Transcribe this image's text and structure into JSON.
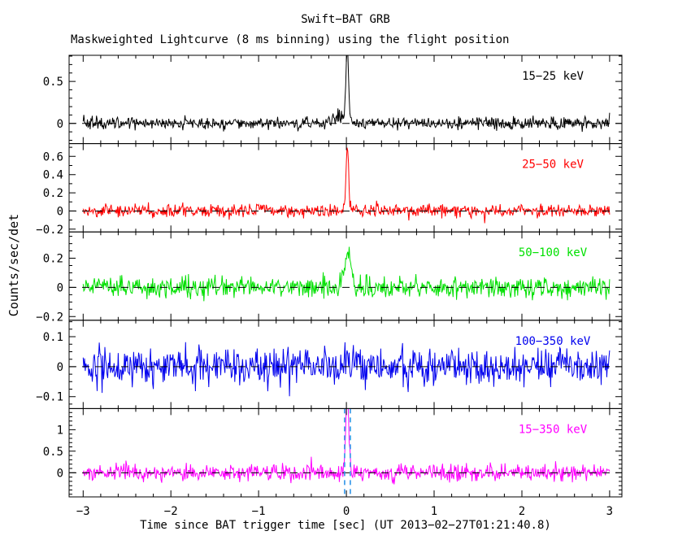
{
  "chart_data": {
    "type": "line",
    "title": "Swift−BAT GRB",
    "subtitle": "Maskweighted Lightcurve (8 ms binning) using the flight position",
    "xlabel": "Time since BAT trigger time [sec] (UT 2013−02−27T01:21:40.8)",
    "ylabel": "Counts/sec/det",
    "x_range": [
      -3.16,
      3.14
    ],
    "data_x_span": [
      -3.0,
      3.0
    ],
    "bin_seconds": 0.008,
    "x_minor_step": 0.2,
    "x_major_ticks": [
      {
        "v": -3,
        "label": "−3"
      },
      {
        "v": -2,
        "label": "−2"
      },
      {
        "v": -1,
        "label": "−1"
      },
      {
        "v": 0,
        "label": "0"
      },
      {
        "v": 1,
        "label": "1"
      },
      {
        "v": 2,
        "label": "2"
      },
      {
        "v": 3,
        "label": "3"
      }
    ],
    "zero_line": {
      "style": "dashed",
      "color": "#000000",
      "value": 0
    },
    "panels": [
      {
        "label": "15−25 keV",
        "color": "#000000",
        "ylim": [
          -0.24,
          0.81
        ],
        "y_major_ticks": [
          {
            "v": 0,
            "label": "0"
          },
          {
            "v": 0.5,
            "label": "0.5"
          }
        ],
        "y_minor_step": 0.1,
        "baseline": 0,
        "noise_sigma": 0.038,
        "peaks": [
          {
            "t0": 0.01,
            "width_s": 0.016,
            "amp": 0.82
          },
          {
            "t0": -0.08,
            "width_s": 0.05,
            "amp": 0.1
          }
        ]
      },
      {
        "label": "25−50 keV",
        "color": "#FF0000",
        "ylim": [
          -0.23,
          0.74
        ],
        "y_major_ticks": [
          {
            "v": -0.2,
            "label": "−0.2"
          },
          {
            "v": 0,
            "label": "0"
          },
          {
            "v": 0.2,
            "label": "0.2"
          },
          {
            "v": 0.4,
            "label": "0.4"
          },
          {
            "v": 0.6,
            "label": "0.6"
          }
        ],
        "y_minor_step": 0.1,
        "baseline": 0,
        "noise_sigma": 0.036,
        "peaks": [
          {
            "t0": 0.01,
            "width_s": 0.014,
            "amp": 0.73
          }
        ]
      },
      {
        "label": "50−100 keV",
        "color": "#00E000",
        "ylim": [
          -0.225,
          0.38
        ],
        "y_major_ticks": [
          {
            "v": -0.2,
            "label": "−0.2"
          },
          {
            "v": 0,
            "label": "0"
          },
          {
            "v": 0.2,
            "label": "0.2"
          }
        ],
        "y_minor_step": 0.05,
        "baseline": 0,
        "noise_sigma": 0.035,
        "peaks": [
          {
            "t0": 0.02,
            "width_s": 0.035,
            "amp": 0.24
          }
        ]
      },
      {
        "label": "100−350 keV",
        "color": "#0000EE",
        "ylim": [
          -0.14,
          0.155
        ],
        "y_major_ticks": [
          {
            "v": -0.1,
            "label": "−0.1"
          },
          {
            "v": 0,
            "label": "0"
          },
          {
            "v": 0.1,
            "label": "0.1"
          }
        ],
        "y_minor_step": 0.025,
        "baseline": 0,
        "noise_sigma": 0.03,
        "peaks": [
          {
            "t0": 0.02,
            "width_s": 0.03,
            "amp": 0.05
          }
        ]
      },
      {
        "label": "15−350 keV",
        "color": "#FF00FF",
        "ylim": [
          -0.56,
          1.49
        ],
        "y_major_ticks": [
          {
            "v": 0,
            "label": "0"
          },
          {
            "v": 0.5,
            "label": "0.5"
          },
          {
            "v": 1,
            "label": "1"
          }
        ],
        "y_minor_step": 0.1,
        "baseline": 0,
        "noise_sigma": 0.095,
        "peaks": [
          {
            "t0": 0.01,
            "width_s": 0.018,
            "amp": 1.8
          }
        ],
        "vlines": {
          "times": [
            -0.02,
            0.045
          ],
          "style": "dashed",
          "color": "#2E94E8"
        }
      }
    ]
  }
}
